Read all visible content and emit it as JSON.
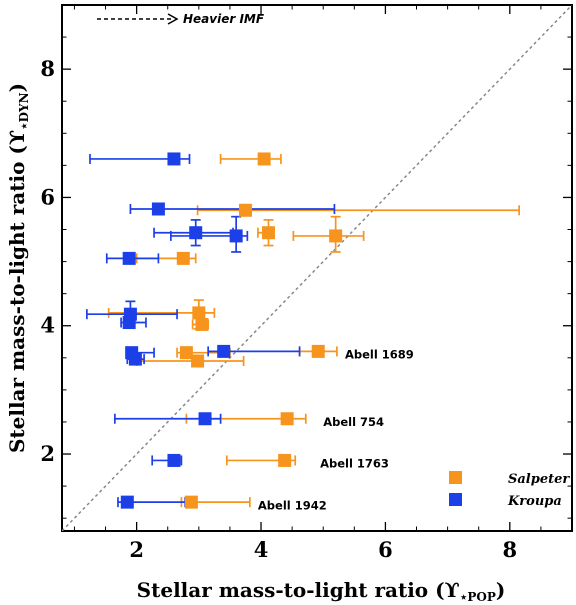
{
  "chart_data": {
    "type": "scatter",
    "xlabel": "Stellar mass-to-light ratio (ϒ",
    "xlabel_sub": "⋆POP",
    "ylabel": "Stellar mass-to-light ratio (ϒ",
    "ylabel_sub": "⋆DYN",
    "label_close": ")",
    "xlim": [
      0.8,
      9.0
    ],
    "ylim": [
      0.8,
      9.0
    ],
    "xticks": [
      "2",
      "4",
      "6",
      "8"
    ],
    "yticks": [
      "2",
      "4",
      "6",
      "8"
    ],
    "x_tick_values": [
      2,
      4,
      6,
      8
    ],
    "y_tick_values": [
      2,
      4,
      6,
      8
    ],
    "one_to_one_line": true,
    "heavier_imf_label": "Heavier IMF",
    "legend_placement": "bottom-right",
    "series": [
      {
        "name": "Salpeter",
        "color": "#f7941d",
        "points": [
          {
            "x": 4.05,
            "y": 6.6,
            "xerr": [
              3.35,
              4.32
            ],
            "yerr": null
          },
          {
            "x": 3.75,
            "y": 5.8,
            "xerr": [
              2.98,
              8.15
            ],
            "yerr": null
          },
          {
            "x": 4.12,
            "y": 5.45,
            "xerr": [
              3.95,
              4.18
            ],
            "yerr": [
              5.25,
              5.65
            ]
          },
          {
            "x": 5.2,
            "y": 5.4,
            "xerr": [
              4.52,
              5.65
            ],
            "yerr": [
              5.15,
              5.7
            ]
          },
          {
            "x": 2.75,
            "y": 5.05,
            "xerr": [
              2.0,
              2.95
            ],
            "yerr": null
          },
          {
            "x": 3.0,
            "y": 4.2,
            "xerr": [
              1.55,
              3.25
            ],
            "yerr": [
              3.95,
              4.4
            ]
          },
          {
            "x": 3.05,
            "y": 4.02,
            "xerr": [
              2.9,
              3.15
            ],
            "yerr": null
          },
          {
            "x": 2.8,
            "y": 3.58,
            "xerr": [
              2.65,
              3.5
            ],
            "yerr": null
          },
          {
            "x": 2.98,
            "y": 3.45,
            "xerr": [
              2.0,
              3.72
            ],
            "yerr": null
          },
          {
            "x": 4.92,
            "y": 3.6,
            "xerr": [
              4.62,
              5.22
            ],
            "yerr": null
          },
          {
            "x": 4.42,
            "y": 2.55,
            "xerr": [
              2.8,
              4.72
            ],
            "yerr": null
          },
          {
            "x": 4.38,
            "y": 1.9,
            "xerr": [
              3.45,
              4.55
            ],
            "yerr": null
          },
          {
            "x": 2.88,
            "y": 1.25,
            "xerr": [
              2.72,
              3.82
            ],
            "yerr": null
          }
        ]
      },
      {
        "name": "Kroupa",
        "color": "#1c3fe8",
        "points": [
          {
            "x": 2.6,
            "y": 6.6,
            "xerr": [
              1.25,
              2.85
            ],
            "yerr": null
          },
          {
            "x": 2.35,
            "y": 5.82,
            "xerr": [
              1.9,
              5.18
            ],
            "yerr": null
          },
          {
            "x": 2.95,
            "y": 5.45,
            "xerr": [
              2.28,
              3.55
            ],
            "yerr": [
              5.25,
              5.65
            ]
          },
          {
            "x": 3.6,
            "y": 5.4,
            "xerr": [
              2.55,
              3.78
            ],
            "yerr": [
              5.15,
              5.7
            ]
          },
          {
            "x": 1.88,
            "y": 5.05,
            "xerr": [
              1.52,
              2.35
            ],
            "yerr": null
          },
          {
            "x": 1.9,
            "y": 4.18,
            "xerr": [
              1.2,
              2.65
            ],
            "yerr": [
              4.0,
              4.38
            ]
          },
          {
            "x": 1.88,
            "y": 4.05,
            "xerr": [
              1.75,
              2.15
            ],
            "yerr": null
          },
          {
            "x": 1.92,
            "y": 3.58,
            "xerr": [
              1.85,
              2.28
            ],
            "yerr": null
          },
          {
            "x": 1.98,
            "y": 3.48,
            "xerr": [
              1.85,
              2.12
            ],
            "yerr": null
          },
          {
            "x": 3.4,
            "y": 3.6,
            "xerr": [
              3.15,
              4.62
            ],
            "yerr": null
          },
          {
            "x": 3.1,
            "y": 2.55,
            "xerr": [
              1.65,
              3.35
            ],
            "yerr": null
          },
          {
            "x": 2.6,
            "y": 1.9,
            "xerr": [
              2.25,
              2.72
            ],
            "yerr": null
          },
          {
            "x": 1.85,
            "y": 1.25,
            "xerr": [
              1.7,
              2.78
            ],
            "yerr": null
          }
        ]
      }
    ],
    "annotations": [
      {
        "text": "Abell 1689",
        "x": 5.35,
        "y": 3.55
      },
      {
        "text": "Abell 754",
        "x": 5.0,
        "y": 2.5
      },
      {
        "text": "Abell 1763",
        "x": 4.95,
        "y": 1.85
      },
      {
        "text": "Abell 1942",
        "x": 3.95,
        "y": 1.2
      }
    ]
  }
}
